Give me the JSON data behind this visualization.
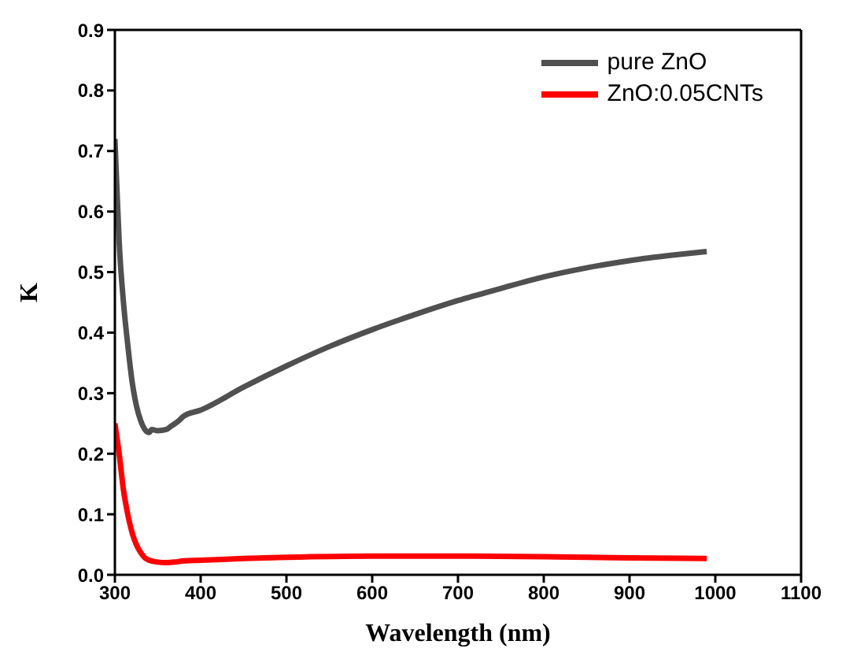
{
  "chart_data": {
    "type": "line",
    "xlabel": "Wavelength (nm)",
    "ylabel": "K",
    "xlim": [
      300,
      1100
    ],
    "xticks": [
      300,
      400,
      500,
      600,
      700,
      800,
      900,
      1000,
      1100
    ],
    "ylim": [
      0,
      0.9
    ],
    "yticks": [
      {
        "value": 0,
        "label": "0.0"
      },
      0.1,
      0.2,
      0.3,
      0.4,
      0.5,
      0.6,
      0.7,
      0.8,
      0.9
    ],
    "grid": false,
    "legend": "top right",
    "marker": "none",
    "line_style": "solid",
    "series": [
      {
        "name": "pure ZnO",
        "color": "#505050",
        "x": [
          300,
          302,
          305,
          310,
          315,
          320,
          325,
          330,
          335,
          340,
          343,
          350,
          360,
          365,
          375,
          380,
          400,
          450,
          500,
          550,
          600,
          650,
          700,
          750,
          800,
          850,
          900,
          950,
          990
        ],
        "values": [
          0.72,
          0.65,
          0.55,
          0.45,
          0.38,
          0.32,
          0.28,
          0.255,
          0.24,
          0.235,
          0.24,
          0.238,
          0.24,
          0.245,
          0.255,
          0.262,
          0.272,
          0.31,
          0.345,
          0.377,
          0.405,
          0.43,
          0.453,
          0.473,
          0.492,
          0.507,
          0.519,
          0.528,
          0.534
        ]
      },
      {
        "name": "ZnO:0.05CNTs",
        "color": "#ff0000",
        "x": [
          300,
          305,
          310,
          315,
          320,
          325,
          330,
          335,
          340,
          350,
          360,
          370,
          380,
          400,
          450,
          500,
          600,
          700,
          800,
          900,
          990
        ],
        "values": [
          0.25,
          0.2,
          0.14,
          0.1,
          0.07,
          0.05,
          0.037,
          0.028,
          0.024,
          0.021,
          0.02,
          0.021,
          0.023,
          0.024,
          0.027,
          0.029,
          0.031,
          0.031,
          0.03,
          0.028,
          0.027
        ]
      }
    ]
  }
}
